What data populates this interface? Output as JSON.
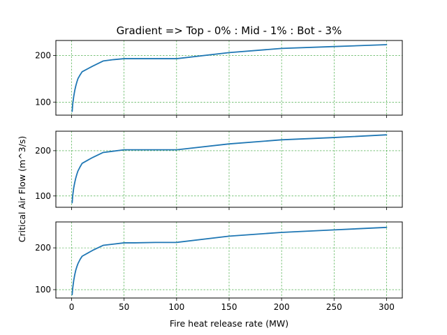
{
  "chart_data": {
    "type": "line",
    "title": "Gradient => Top - 0% : Mid - 1% : Bot - 3%",
    "xlabel": "Fire heat release rate (MW)",
    "ylabel": "Critical Air Flow (m^3/s)",
    "xlim": [
      -15,
      315
    ],
    "x_ticks": [
      0,
      50,
      100,
      150,
      200,
      250,
      300
    ],
    "grid": true,
    "grid_color": "#2ca02c",
    "line_color": "#1f77b4",
    "subplots": [
      {
        "position": "top",
        "ylim": [
          72,
          232
        ],
        "y_ticks": [
          100,
          200
        ],
        "x": [
          0.5,
          1,
          2,
          3,
          4,
          5,
          6,
          8,
          10,
          20,
          30,
          40,
          50,
          60,
          80,
          100,
          150,
          200,
          250,
          300
        ],
        "y": [
          80,
          95,
          112,
          125,
          135,
          143,
          150,
          158,
          165,
          177,
          188,
          191,
          193,
          193,
          193,
          193,
          206,
          215,
          219,
          223
        ]
      },
      {
        "position": "mid",
        "ylim": [
          75,
          243
        ],
        "y_ticks": [
          100,
          200
        ],
        "x": [
          0.5,
          1,
          2,
          3,
          4,
          5,
          6,
          8,
          10,
          20,
          30,
          40,
          50,
          60,
          80,
          100,
          150,
          200,
          250,
          300
        ],
        "y": [
          85,
          100,
          118,
          130,
          140,
          148,
          155,
          164,
          172,
          185,
          196,
          199,
          202,
          202,
          202,
          202,
          215,
          224,
          229,
          235
        ]
      },
      {
        "position": "bot",
        "ylim": [
          80,
          262
        ],
        "y_ticks": [
          100,
          200
        ],
        "x": [
          0.5,
          1,
          2,
          3,
          4,
          5,
          6,
          8,
          10,
          20,
          30,
          40,
          50,
          60,
          80,
          100,
          150,
          200,
          250,
          300
        ],
        "y": [
          88,
          103,
          122,
          136,
          147,
          155,
          162,
          172,
          180,
          194,
          206,
          209,
          212,
          212,
          213,
          213,
          228,
          237,
          243,
          249
        ]
      }
    ]
  }
}
